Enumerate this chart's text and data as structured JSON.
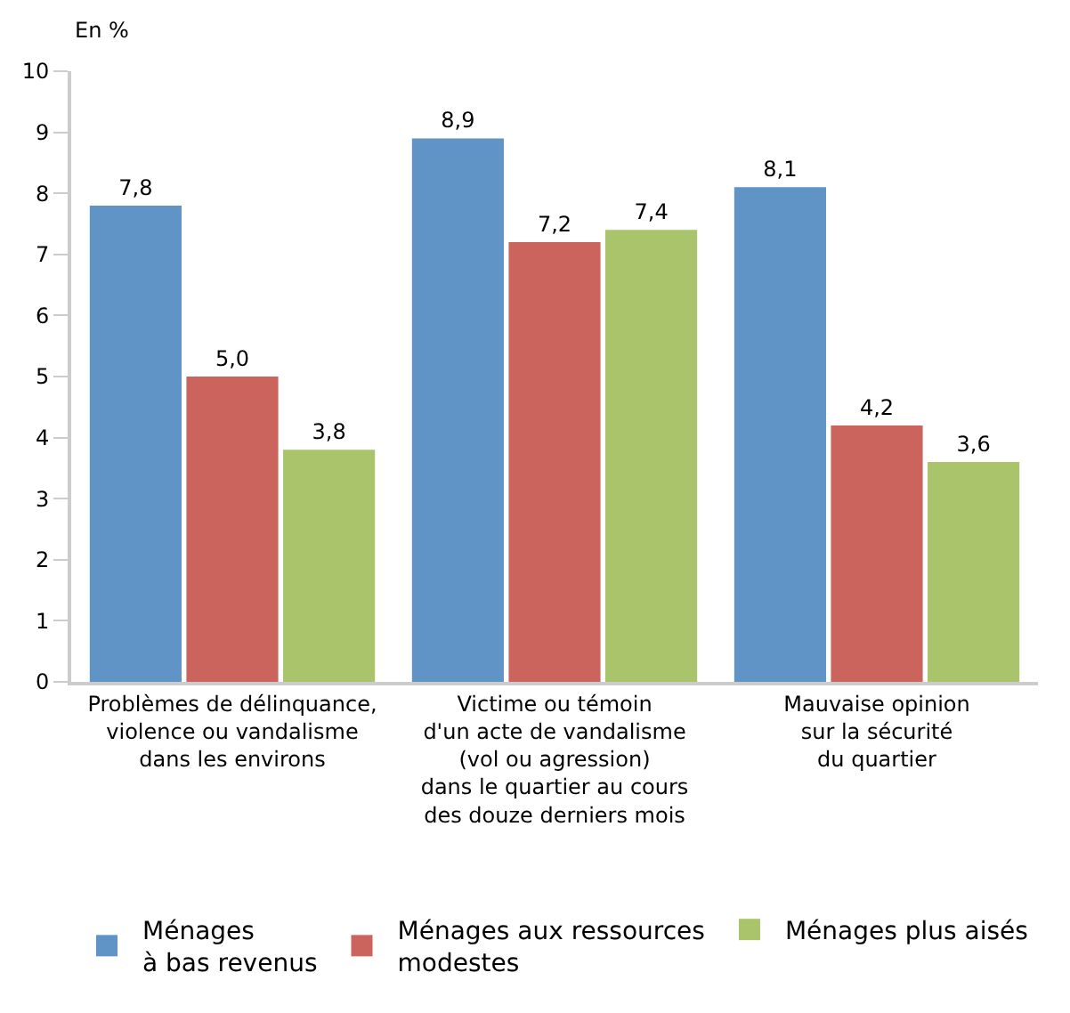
{
  "chart_data": {
    "type": "bar",
    "ylabel": "En %",
    "categories": [
      "Problèmes de délinquance,\nviolence ou vandalisme\ndans les environs",
      "Victime ou témoin\nd'un acte de vandalisme\n(vol ou agression)\ndans le quartier au cours\ndes douze derniers mois",
      "Mauvaise opinion\nsur la sécurité\ndu quartier"
    ],
    "series": [
      {
        "name": "Ménages\nà bas revenus",
        "color": "#6094c6",
        "values": [
          7.8,
          8.9,
          8.1
        ],
        "value_labels": [
          "7,8",
          "8,9",
          "8,1"
        ]
      },
      {
        "name": "Ménages aux ressources\nmodestes",
        "color": "#cc645e",
        "values": [
          5.0,
          7.2,
          4.2
        ],
        "value_labels": [
          "5,0",
          "7,2",
          "4,2"
        ]
      },
      {
        "name": "Ménages plus aisés",
        "color": "#a9c46a",
        "values": [
          3.8,
          7.4,
          3.6
        ],
        "value_labels": [
          "3,8",
          "7,4",
          "3,6"
        ]
      }
    ],
    "ylim": [
      0,
      10
    ],
    "yticks": [
      0,
      1,
      2,
      3,
      4,
      5,
      6,
      7,
      8,
      9,
      10
    ],
    "legend": "bottom"
  }
}
